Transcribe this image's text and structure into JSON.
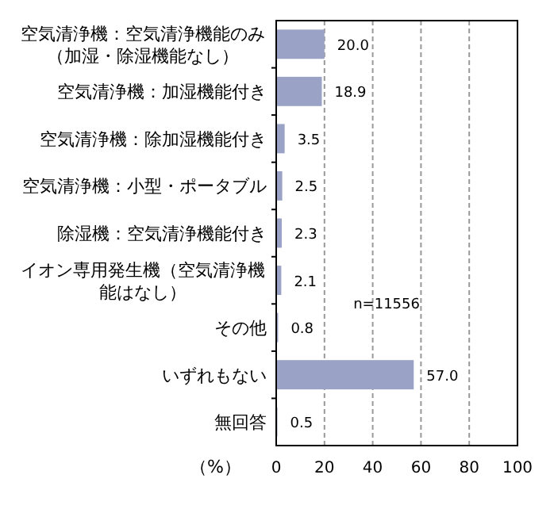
{
  "chart_data": {
    "type": "bar",
    "orientation": "horizontal",
    "categories": [
      "空気清浄機：空気清浄機能のみ（加湿・除湿機能なし）",
      "空気清浄機：加湿機能付き",
      "空気清浄機：除加湿機能付き",
      "空気清浄機：小型・ポータブル",
      "除湿機：空気清浄機能付き",
      "イオン専用発生機（空気清浄機能はなし）",
      "その他",
      "いずれもない",
      "無回答"
    ],
    "values": [
      20.0,
      18.9,
      3.5,
      2.5,
      2.3,
      2.1,
      0.8,
      57.0,
      0.5
    ],
    "value_labels": [
      "20.0",
      "18.9",
      "3.5",
      "2.5",
      "2.3",
      "2.1",
      "0.8",
      "57.0",
      "0.5"
    ],
    "color": "#9aa3c6",
    "xlim": [
      0,
      100
    ],
    "xticks": [
      0,
      20,
      40,
      60,
      80,
      100
    ],
    "xlabel": "（%）",
    "annotations": [
      "n=11556"
    ],
    "grid": "x"
  }
}
